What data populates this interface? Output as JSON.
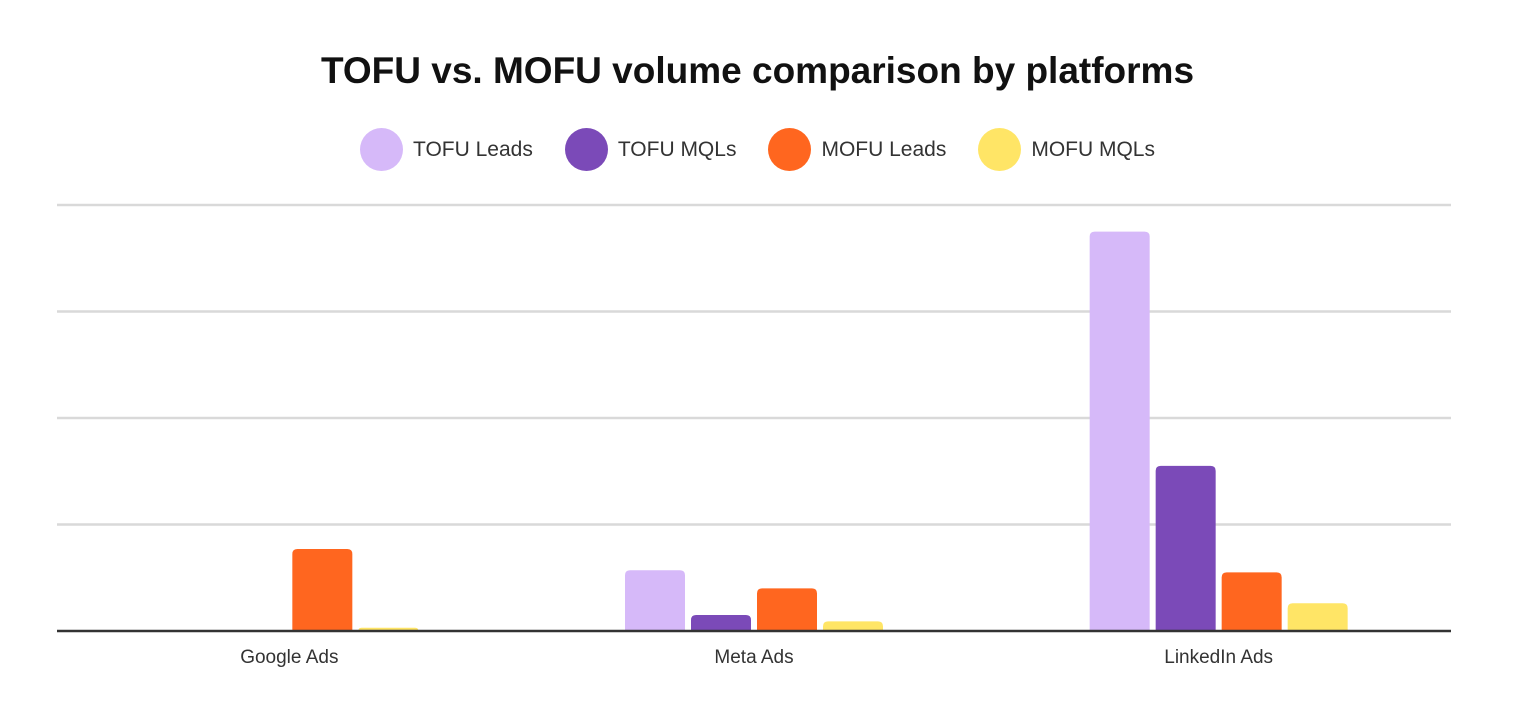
{
  "chart_data": {
    "type": "bar",
    "title": "TOFU vs. MOFU volume comparison by platforms",
    "xlabel": "",
    "ylabel": "",
    "categories": [
      "Google Ads",
      "Meta Ads",
      "LinkedIn Ads"
    ],
    "series": [
      {
        "name": "TOFU Leads",
        "color": "#d6b9f9",
        "values": [
          0,
          57,
          375
        ]
      },
      {
        "name": "TOFU MQLs",
        "color": "#7b4ab8",
        "values": [
          0,
          15,
          155
        ]
      },
      {
        "name": "MOFU Leads",
        "color": "#ff661f",
        "values": [
          77,
          40,
          55
        ]
      },
      {
        "name": "MOFU MQLs",
        "color": "#ffe566",
        "values": [
          3,
          9,
          26
        ]
      }
    ],
    "ylim": [
      0,
      400
    ],
    "gridlines": [
      0,
      100,
      200,
      300,
      400
    ],
    "grid": true,
    "y_tick_labels_shown": false,
    "legend_position": "top-center"
  }
}
